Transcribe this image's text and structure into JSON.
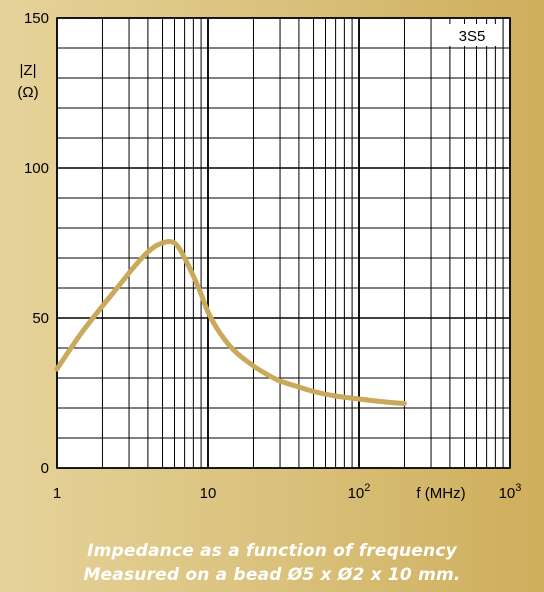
{
  "chart_data": {
    "type": "line",
    "x_scale": "log",
    "xlim": [
      1,
      1000
    ],
    "ylim": [
      0,
      150
    ],
    "grid": true,
    "x_ticks": [
      {
        "value": 1,
        "base": "1",
        "exp": ""
      },
      {
        "value": 10,
        "base": "10",
        "exp": ""
      },
      {
        "value": 100,
        "base": "10",
        "exp": "2"
      },
      {
        "value": 1000,
        "base": "10",
        "exp": "3"
      }
    ],
    "y_ticks": [
      0,
      50,
      100,
      150
    ],
    "xlabel": "f (MHz)",
    "ylabel_line1": "|Z|",
    "ylabel_line2": "(Ω)",
    "material_label": "3S5",
    "series": [
      {
        "color": "#c9a95a",
        "x": [
          1,
          1.2,
          1.5,
          2,
          2.5,
          3,
          3.5,
          4,
          4.5,
          5,
          5.5,
          6,
          6.5,
          7,
          8,
          9,
          10,
          12,
          15,
          20,
          25,
          30,
          40,
          50,
          70,
          100,
          150,
          200
        ],
        "y": [
          33,
          39,
          46,
          54,
          60,
          65,
          69,
          72,
          74,
          75,
          75.5,
          75,
          73,
          70,
          64,
          58,
          52,
          45,
          39,
          34,
          31,
          29,
          27,
          25.5,
          24,
          23,
          22,
          21.5
        ]
      }
    ]
  },
  "caption": {
    "line1": "Impedance as a function of frequency",
    "line2": "Measured on a bead Ø5 x Ø2 x 10 mm."
  }
}
